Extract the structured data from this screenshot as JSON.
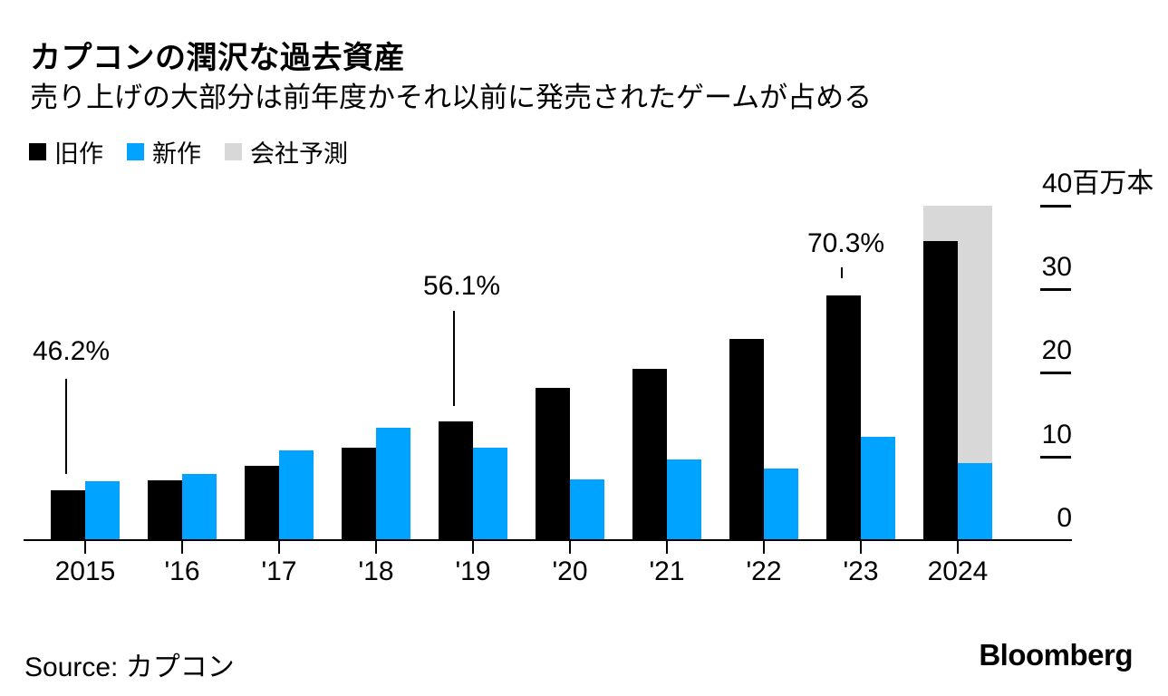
{
  "header": {
    "title": "カプコンの潤沢な過去資産",
    "subtitle": "売り上げの大部分は前年度かそれ以前に発売されたゲームが占める"
  },
  "legend": [
    {
      "label": "旧作",
      "color": "#000000"
    },
    {
      "label": "新作",
      "color": "#00a3ff"
    },
    {
      "label": "会社予測",
      "color": "#d8d8d8"
    }
  ],
  "chart_data": {
    "type": "bar",
    "title": "カプコンの潤沢な過去資産",
    "subtitle": "売り上げの大部分は前年度かそれ以前に発売されたゲームが占める",
    "unit_label": "百万本",
    "categories": [
      "2015",
      "'16",
      "'17",
      "'18",
      "'19",
      "'20",
      "'21",
      "'22",
      "'23",
      "2024"
    ],
    "series": [
      {
        "name": "旧作",
        "color": "#000000",
        "values": [
          6.0,
          7.1,
          8.9,
          11.1,
          14.2,
          18.2,
          20.5,
          24.0,
          29.3,
          35.8
        ]
      },
      {
        "name": "新作",
        "color": "#00a3ff",
        "values": [
          7.0,
          7.9,
          10.7,
          13.4,
          11.1,
          7.3,
          9.6,
          8.6,
          12.4,
          9.2
        ]
      },
      {
        "name": "会社予測",
        "color": "#d8d8d8",
        "values": [
          null,
          null,
          null,
          null,
          null,
          null,
          null,
          null,
          null,
          40.0
        ]
      }
    ],
    "annotations": [
      {
        "text": "46.2%",
        "category": "2015"
      },
      {
        "text": "56.1%",
        "category": "'19"
      },
      {
        "text": "70.3%",
        "category": "'23"
      }
    ],
    "y_axis": {
      "ticks": [
        0,
        10,
        20,
        30,
        40
      ],
      "top_tick_label": "40百万本",
      "ylim": [
        0,
        40
      ]
    },
    "legend_position": "top-left",
    "grid": false
  },
  "footer": {
    "source": "Source: カプコン",
    "brand": "Bloomberg"
  }
}
